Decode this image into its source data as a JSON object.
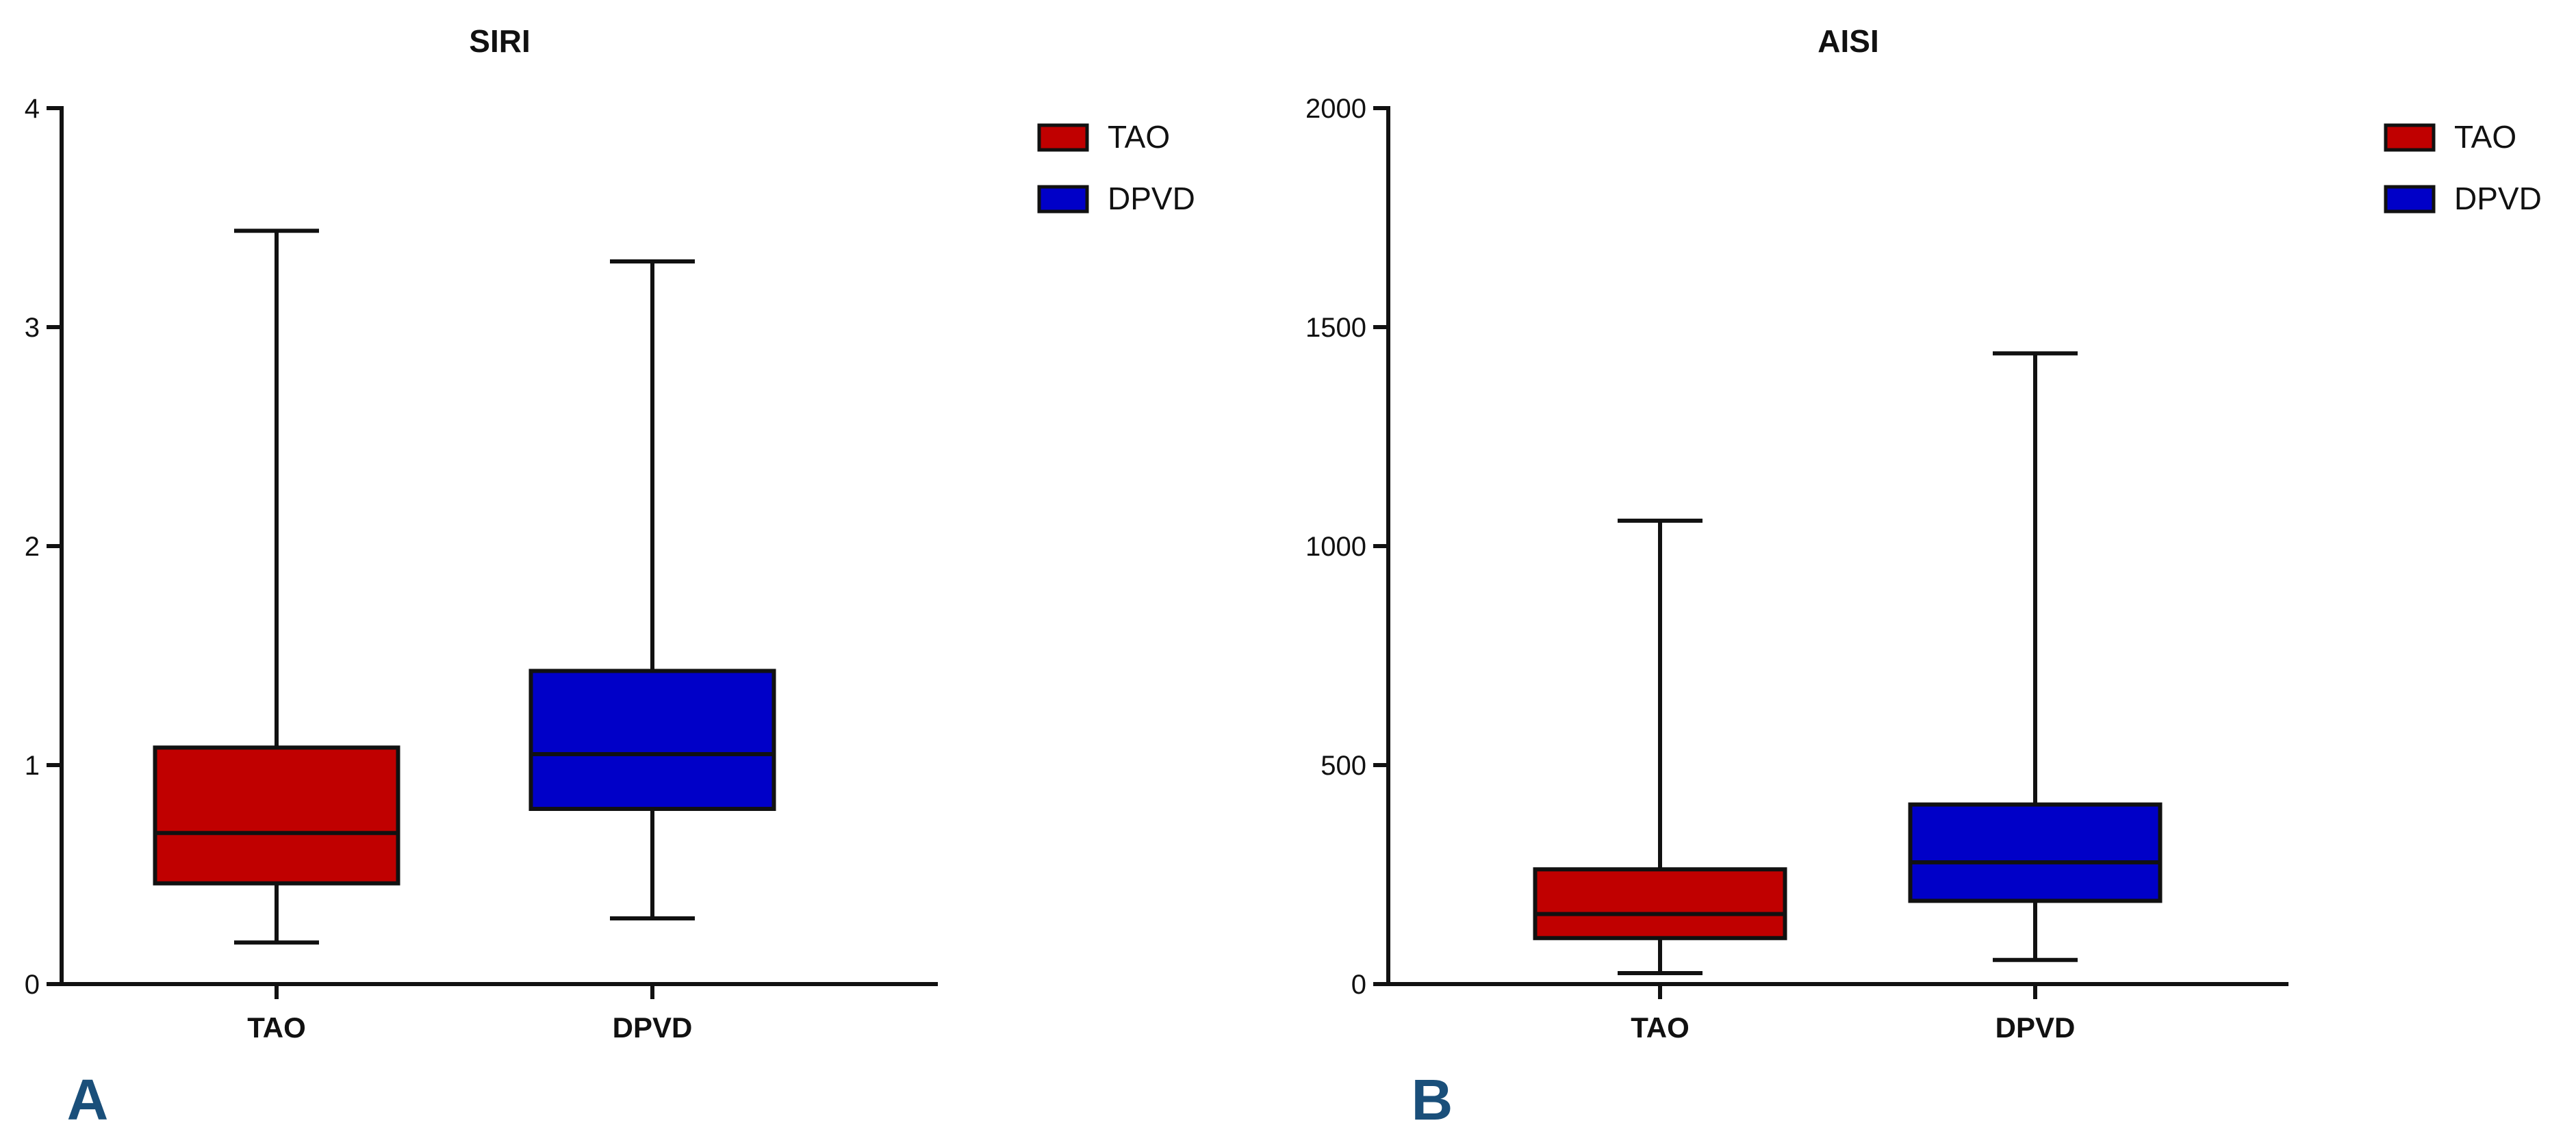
{
  "colors": {
    "TAO": "#c00000",
    "DPVD": "#0000c8",
    "panel_letter": "#1a4f7a",
    "axis": "#111111"
  },
  "chart_data": [
    {
      "type": "boxplot",
      "panel_label": "A",
      "title": "SIRI",
      "xlabel": "",
      "ylabel": "",
      "categories": [
        "TAO",
        "DPVD"
      ],
      "ylim": [
        0,
        4
      ],
      "yticks": [
        0,
        1,
        2,
        3,
        4
      ],
      "grid": false,
      "legend": {
        "position": "top-right",
        "entries": [
          "TAO",
          "DPVD"
        ]
      },
      "series": [
        {
          "name": "TAO",
          "min": 0.19,
          "q1": 0.46,
          "median": 0.69,
          "q3": 1.08,
          "max": 3.44
        },
        {
          "name": "DPVD",
          "min": 0.3,
          "q1": 0.8,
          "median": 1.05,
          "q3": 1.43,
          "max": 3.3
        }
      ]
    },
    {
      "type": "boxplot",
      "panel_label": "B",
      "title": "AISI",
      "xlabel": "",
      "ylabel": "",
      "categories": [
        "TAO",
        "DPVD"
      ],
      "ylim": [
        0,
        2000
      ],
      "yticks": [
        0,
        500,
        1000,
        1500,
        2000
      ],
      "grid": false,
      "legend": {
        "position": "top-right",
        "entries": [
          "TAO",
          "DPVD"
        ]
      },
      "series": [
        {
          "name": "TAO",
          "min": 25,
          "q1": 105,
          "median": 160,
          "q3": 262,
          "max": 1058
        },
        {
          "name": "DPVD",
          "min": 55,
          "q1": 190,
          "median": 278,
          "q3": 410,
          "max": 1440
        }
      ]
    }
  ]
}
